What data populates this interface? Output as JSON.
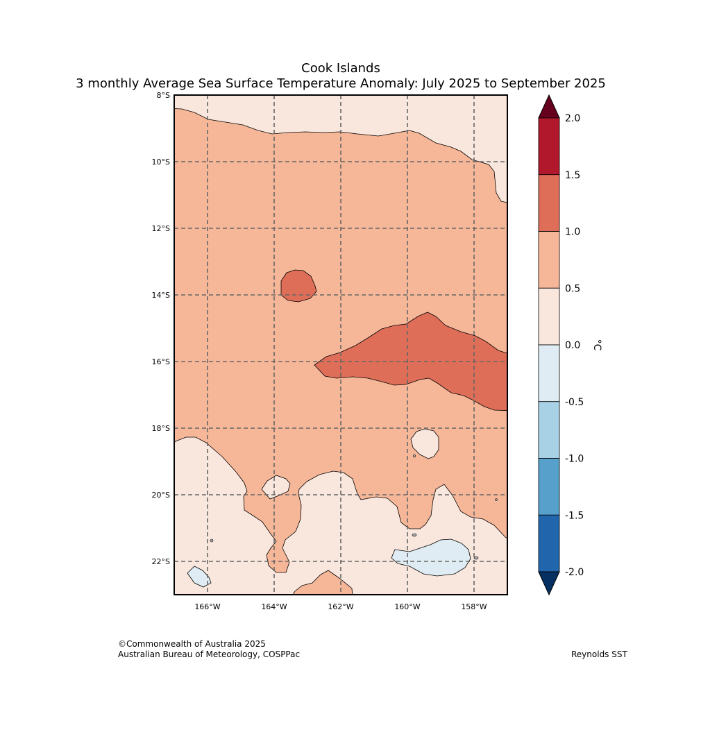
{
  "header": {
    "title_line1": "Cook Islands",
    "title_line2": "3 monthly Average Sea Surface Temperature Anomaly: July 2025 to September 2025"
  },
  "map": {
    "lat_labels": [
      "8°S",
      "10°S",
      "12°S",
      "14°S",
      "16°S",
      "18°S",
      "20°S",
      "22°S"
    ],
    "lon_labels": [
      "166°W",
      "164°W",
      "162°W",
      "160°W",
      "158°W"
    ],
    "extent": {
      "lon_min": -167,
      "lon_max": -157,
      "lat_min": -23,
      "lat_max": -8
    }
  },
  "colorbar": {
    "unit": "°C",
    "tick_labels": [
      "2.0",
      "1.5",
      "1.0",
      "0.5",
      "0.0",
      "-0.5",
      "-1.0",
      "-1.5",
      "-2.0"
    ],
    "levels": [
      {
        "range": "> 2.0",
        "color": "#67001f"
      },
      {
        "range": "1.5 to 2.0",
        "color": "#b2182b"
      },
      {
        "range": "1.0 to 1.5",
        "color": "#de6e58"
      },
      {
        "range": "0.5 to 1.0",
        "color": "#f6b799"
      },
      {
        "range": "0.0 to 0.5",
        "color": "#f9e6dc"
      },
      {
        "range": "-0.5 to 0.0",
        "color": "#e0ecf3"
      },
      {
        "range": "-1.0 to -0.5",
        "color": "#a8d1e5"
      },
      {
        "range": "-1.5 to -1.0",
        "color": "#56a0cb"
      },
      {
        "range": "-2.0 to -1.5",
        "color": "#2166ac"
      },
      {
        "range": "< -2.0",
        "color": "#053061"
      }
    ]
  },
  "footer": {
    "copyright": "©Commonwealth of Australia 2025",
    "agency": "Australian Bureau of Meteorology, COSPPac",
    "source": "Reynolds SST"
  }
}
